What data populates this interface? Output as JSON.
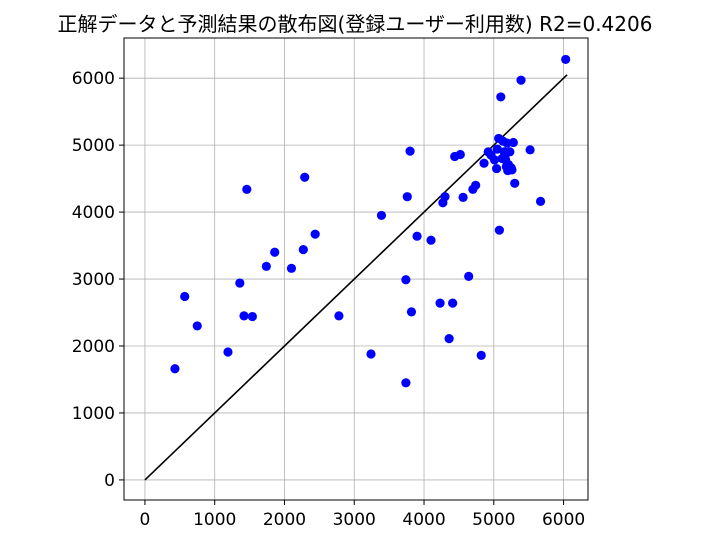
{
  "chart_data": {
    "type": "scatter",
    "title": "正解データと予測結果の散布図(登録ユーザー利用数)  R2=0.4206",
    "xlabel": "",
    "ylabel": "",
    "xlim": [
      -300,
      6350
    ],
    "ylim": [
      -300,
      6600
    ],
    "xticks": [
      0,
      1000,
      2000,
      3000,
      4000,
      5000,
      6000
    ],
    "yticks": [
      0,
      1000,
      2000,
      3000,
      4000,
      5000,
      6000
    ],
    "grid": true,
    "marker_color": "#0000ff",
    "line_color": "#000000",
    "reference_line": {
      "x": [
        0,
        6050
      ],
      "y": [
        0,
        6050
      ]
    },
    "points": [
      [
        430,
        1660
      ],
      [
        570,
        2740
      ],
      [
        750,
        2300
      ],
      [
        1190,
        1910
      ],
      [
        1360,
        2940
      ],
      [
        1420,
        2450
      ],
      [
        1460,
        4340
      ],
      [
        1540,
        2440
      ],
      [
        1740,
        3190
      ],
      [
        1860,
        3400
      ],
      [
        2100,
        3160
      ],
      [
        2270,
        3440
      ],
      [
        2290,
        4520
      ],
      [
        2440,
        3670
      ],
      [
        2780,
        2450
      ],
      [
        3240,
        1880
      ],
      [
        3390,
        3950
      ],
      [
        3740,
        1450
      ],
      [
        3740,
        2990
      ],
      [
        3760,
        4230
      ],
      [
        3800,
        4910
      ],
      [
        3820,
        2510
      ],
      [
        3900,
        3640
      ],
      [
        4100,
        3580
      ],
      [
        4230,
        2640
      ],
      [
        4270,
        4140
      ],
      [
        4300,
        4230
      ],
      [
        4360,
        2110
      ],
      [
        4410,
        2640
      ],
      [
        4440,
        4830
      ],
      [
        4520,
        4860
      ],
      [
        4560,
        4220
      ],
      [
        4640,
        3040
      ],
      [
        4700,
        4340
      ],
      [
        4740,
        4400
      ],
      [
        4820,
        1860
      ],
      [
        4860,
        4730
      ],
      [
        4920,
        4900
      ],
      [
        4960,
        4850
      ],
      [
        5010,
        4780
      ],
      [
        5040,
        4650
      ],
      [
        5050,
        4940
      ],
      [
        5070,
        5100
      ],
      [
        5080,
        3730
      ],
      [
        5100,
        5720
      ],
      [
        5120,
        4800
      ],
      [
        5130,
        5060
      ],
      [
        5150,
        4900
      ],
      [
        5160,
        4850
      ],
      [
        5170,
        4780
      ],
      [
        5180,
        4680
      ],
      [
        5190,
        5030
      ],
      [
        5200,
        4620
      ],
      [
        5210,
        4710
      ],
      [
        5230,
        4900
      ],
      [
        5250,
        4660
      ],
      [
        5260,
        4630
      ],
      [
        5280,
        5040
      ],
      [
        5300,
        4430
      ],
      [
        5390,
        5970
      ],
      [
        5520,
        4930
      ],
      [
        5670,
        4160
      ],
      [
        6030,
        6280
      ]
    ]
  }
}
